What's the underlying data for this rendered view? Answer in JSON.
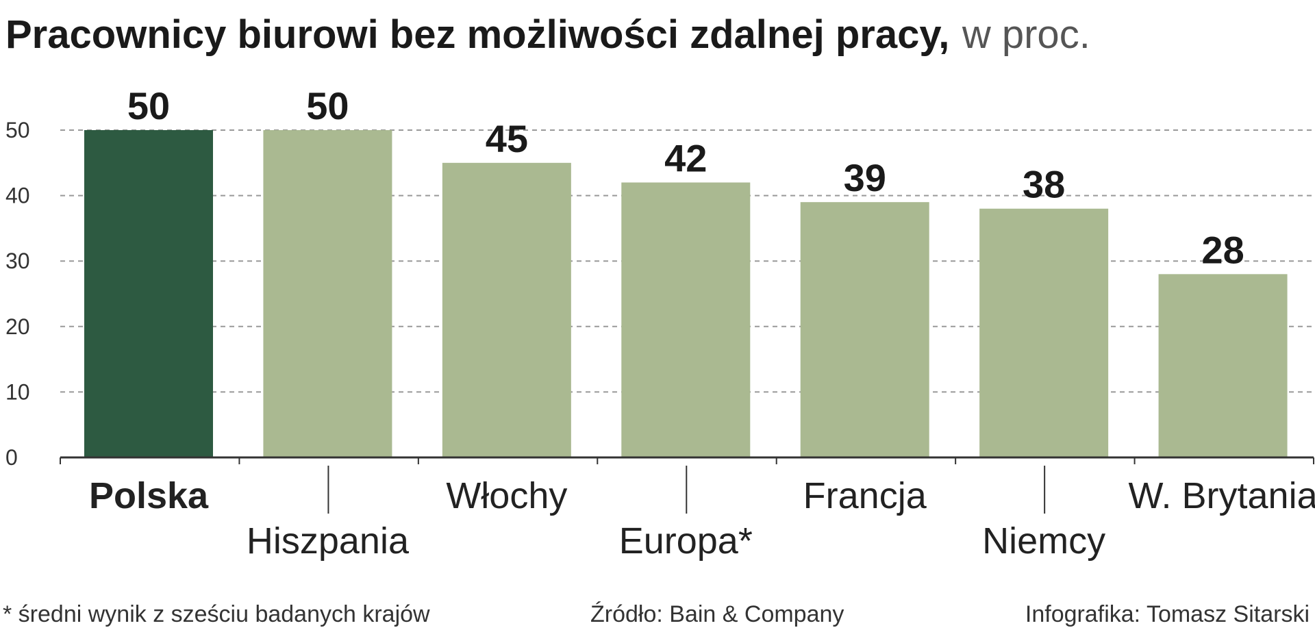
{
  "title": "Pracownicy biurowi bez możliwości zdalnej pracy,",
  "title_unit": "w proc.",
  "footnote": "* średni wynik z sześciu badanych krajów",
  "source": "Źródło: Bain & Company",
  "credit": "Infografika: Tomasz Sitarski",
  "colors": {
    "highlight": "#2d5a41",
    "bar": "#aab991",
    "grid": "#999999",
    "axis": "#333333"
  },
  "chart_data": {
    "type": "bar",
    "categories": [
      "Polska",
      "Hiszpania",
      "Włochy",
      "Europa*",
      "Francja",
      "Niemcy",
      "W. Brytania"
    ],
    "values": [
      50,
      50,
      45,
      42,
      39,
      38,
      28
    ],
    "value_labels": [
      "50",
      "50",
      "45",
      "42",
      "39",
      "38",
      "28"
    ],
    "highlight_index": 0,
    "ylim": [
      0,
      50
    ],
    "yticks": [
      0,
      10,
      20,
      30,
      40,
      50
    ],
    "ytick_labels": [
      "0",
      "10",
      "20",
      "30",
      "40",
      "50"
    ],
    "grid": true,
    "legend": false
  }
}
